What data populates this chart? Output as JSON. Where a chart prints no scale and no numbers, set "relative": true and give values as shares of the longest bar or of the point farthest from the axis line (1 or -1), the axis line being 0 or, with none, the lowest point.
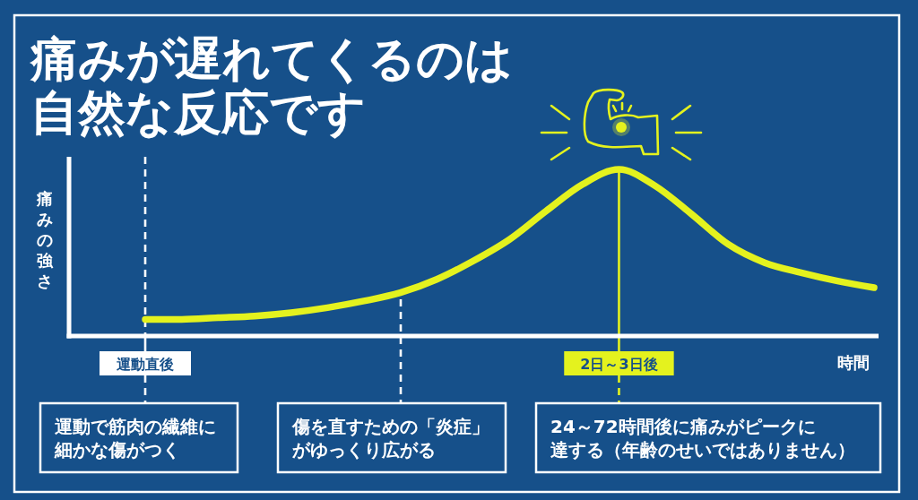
{
  "chart_data": {
    "type": "line",
    "title": "痛みが遅れてくるのは自然な反応です",
    "xlabel": "時間",
    "ylabel": "痛みの強さ",
    "relative": true,
    "categories": [
      "運動直後",
      null,
      null,
      null,
      null,
      null,
      null,
      null,
      null,
      null,
      null,
      null,
      null,
      "2日～3日後",
      null,
      null,
      null,
      null,
      null,
      null,
      null
    ],
    "series": [
      {
        "color": "#e4f21e",
        "values": [
          0.1,
          0.1,
          0.11,
          0.12,
          0.14,
          0.17,
          0.21,
          0.26,
          0.34,
          0.45,
          0.58,
          0.75,
          0.91,
          1,
          0.9,
          0.73,
          0.55,
          0.44,
          0.38,
          0.33,
          0.29
        ]
      }
    ],
    "ref_lines": [
      {
        "axis": "x",
        "value": "運動直後",
        "color": "#ffffff",
        "line_style": "dashed"
      },
      {
        "axis": "x",
        "value": "2日～3日後",
        "color": "#e4f21e",
        "line_style": "solid"
      }
    ],
    "annotations": [
      "運動で筋肉の繊維に細かな傷がつく",
      "傷を直すための「炎症」がゆっくり広がる",
      "24～72時間後に痛みがピークに達する（年齢のせいではありません）"
    ]
  }
}
